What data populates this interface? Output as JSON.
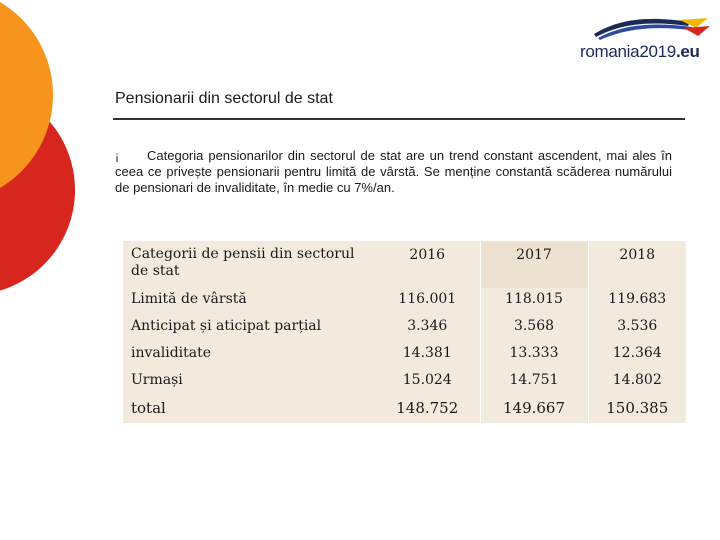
{
  "header": {
    "logo_text": "romania2019.eu",
    "logo_name": "romania",
    "logo_year": "2019",
    "logo_suffix": ".eu",
    "logo_colors": [
      "#1b2a58",
      "#2e4a9e",
      "#f2b705",
      "#d7261e"
    ]
  },
  "slide": {
    "title": "Pensionarii din sectorul de stat",
    "bullet_symbol": "¡",
    "intro": "Categoria pensionarilor din sectorul de stat are un trend constant ascendent, mai ales în ceea ce privește pensionarii pentru limită de vârstă. Se menține constantă scăderea numărului de pensionari de invaliditate, în medie cu 7%/an."
  },
  "decoration": {
    "colors": [
      "#f7941d",
      "#d7261e"
    ]
  },
  "table": {
    "headers": [
      "Categorii de pensii din sectorul de stat",
      "2016",
      "2017",
      "2018"
    ],
    "rows": [
      [
        "Limită de vârstă",
        "116.001",
        "118.015",
        "119.683"
      ],
      [
        "Anticipat și aticipat parțial",
        "3.346",
        "3.568",
        "3.536"
      ],
      [
        "invaliditate",
        "14.381",
        "13.333",
        "12.364"
      ],
      [
        "Urmași",
        "15.024",
        "14.751",
        "14.802"
      ],
      [
        "total",
        "148.752",
        "149.667",
        "150.385"
      ]
    ]
  }
}
